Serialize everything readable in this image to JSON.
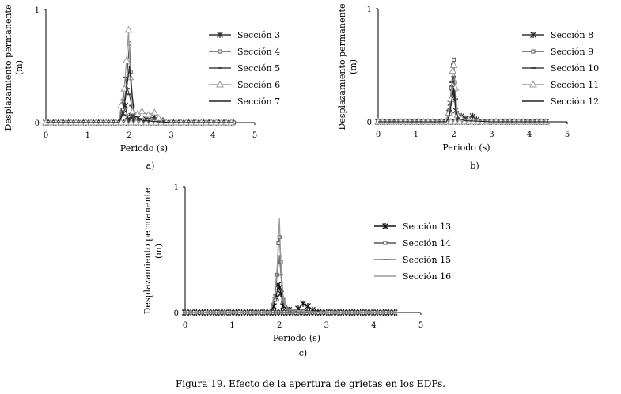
{
  "caption": "Figura 19. Efecto de la apertura de grietas en los EDPs.",
  "chart_data": [
    {
      "type": "line",
      "panel_label": "a)",
      "xlabel": "Periodo (s)",
      "ylabel_line1": "Desplazamiento permanente",
      "ylabel_line2": "(m)",
      "xlim": [
        0,
        5
      ],
      "ylim": [
        0,
        1
      ],
      "xticks": [
        "0",
        "1",
        "2",
        "3",
        "4",
        "5"
      ],
      "yticks": [
        "0",
        "1"
      ],
      "legend_position": "right",
      "series": [
        {
          "name": "Sección 3",
          "marker": "star",
          "color": "#333333",
          "x": [
            0,
            1.75,
            1.85,
            1.9,
            1.95,
            2.0,
            2.05,
            2.1,
            2.2,
            2.4,
            2.6,
            2.75,
            3.0,
            4.5
          ],
          "y": [
            0,
            0,
            0.08,
            0.15,
            0.05,
            0.02,
            0.06,
            0.03,
            0.04,
            0.03,
            0.05,
            0.02,
            0,
            0
          ]
        },
        {
          "name": "Sección 4",
          "marker": "square",
          "color": "#555555",
          "x": [
            0,
            1.75,
            1.85,
            1.92,
            1.97,
            2.0,
            2.03,
            2.08,
            2.15,
            2.3,
            2.6,
            3.0,
            4.5
          ],
          "y": [
            0,
            0,
            0.12,
            0.3,
            0.55,
            0.7,
            0.45,
            0.15,
            0.04,
            0.02,
            0.01,
            0,
            0
          ]
        },
        {
          "name": "Sección 5",
          "marker": "dash",
          "color": "#444444",
          "x": [
            0,
            1.75,
            1.85,
            1.9,
            1.95,
            2.0,
            2.05,
            2.1,
            2.2,
            2.5,
            3.0,
            4.5
          ],
          "y": [
            0,
            0,
            0.2,
            0.4,
            0.3,
            0.25,
            0.15,
            0.05,
            0.02,
            0.01,
            0,
            0
          ]
        },
        {
          "name": "Sección 6",
          "marker": "triangle",
          "color": "#999999",
          "x": [
            0,
            1.75,
            1.8,
            1.88,
            1.93,
            1.98,
            2.02,
            2.08,
            2.2,
            2.3,
            2.45,
            2.6,
            2.7,
            3.0,
            4.5
          ],
          "y": [
            0,
            0,
            0.15,
            0.3,
            0.55,
            0.82,
            0.4,
            0.1,
            0.08,
            0.1,
            0.07,
            0.09,
            0.04,
            0,
            0
          ]
        },
        {
          "name": "Sección 7",
          "marker": "none",
          "color": "#222222",
          "x": [
            0,
            1.75,
            1.82,
            1.9,
            1.95,
            2.0,
            2.05,
            2.12,
            2.3,
            2.6,
            3.0,
            4.5
          ],
          "y": [
            0,
            0,
            0.06,
            0.2,
            0.35,
            0.5,
            0.3,
            0.06,
            0.02,
            0.01,
            0,
            0
          ]
        }
      ]
    },
    {
      "type": "line",
      "panel_label": "b)",
      "xlabel": "Periodo (s)",
      "ylabel_line1": "Desplazamiento permanente",
      "ylabel_line2": "(m)",
      "xlim": [
        0,
        5
      ],
      "ylim": [
        0,
        1
      ],
      "xticks": [
        "0",
        "1",
        "2",
        "3",
        "4",
        "5"
      ],
      "yticks": [
        "0",
        "1"
      ],
      "legend_position": "right",
      "series": [
        {
          "name": "Sección 8",
          "marker": "star",
          "color": "#333333",
          "x": [
            0,
            1.8,
            1.88,
            1.93,
            1.97,
            2.0,
            2.05,
            2.1,
            2.2,
            2.3,
            2.5,
            2.6,
            3.0,
            4.5
          ],
          "y": [
            0,
            0,
            0.08,
            0.2,
            0.3,
            0.25,
            0.1,
            0.03,
            0.05,
            0.03,
            0.05,
            0.02,
            0,
            0
          ]
        },
        {
          "name": "Sección 9",
          "marker": "square",
          "color": "#555555",
          "x": [
            0,
            1.8,
            1.88,
            1.94,
            1.98,
            2.0,
            2.03,
            2.08,
            2.2,
            2.5,
            3.0,
            4.5
          ],
          "y": [
            0,
            0,
            0.1,
            0.3,
            0.5,
            0.55,
            0.35,
            0.08,
            0.02,
            0.01,
            0,
            0
          ]
        },
        {
          "name": "Sección 10",
          "marker": "dash",
          "color": "#444444",
          "x": [
            0,
            1.8,
            1.9,
            1.95,
            2.0,
            2.05,
            2.1,
            2.3,
            3.0,
            4.5
          ],
          "y": [
            0,
            0,
            0.15,
            0.35,
            0.4,
            0.2,
            0.05,
            0.01,
            0,
            0
          ]
        },
        {
          "name": "Sección 11",
          "marker": "triangle",
          "color": "#999999",
          "x": [
            0,
            1.8,
            1.87,
            1.92,
            1.97,
            2.0,
            2.04,
            2.1,
            2.2,
            2.4,
            3.0,
            4.5
          ],
          "y": [
            0,
            0,
            0.08,
            0.2,
            0.45,
            0.5,
            0.3,
            0.06,
            0.03,
            0.02,
            0,
            0
          ]
        },
        {
          "name": "Sección 12",
          "marker": "none",
          "color": "#222222",
          "x": [
            0,
            1.8,
            1.88,
            1.95,
            2.0,
            2.05,
            2.12,
            2.3,
            3.0,
            4.5
          ],
          "y": [
            0,
            0,
            0.05,
            0.2,
            0.3,
            0.12,
            0.03,
            0.01,
            0,
            0
          ]
        }
      ]
    },
    {
      "type": "line",
      "panel_label": "c)",
      "xlabel": "Periodo (s)",
      "ylabel_line1": "Desplazamiento permanente",
      "ylabel_line2": "(m)",
      "xlim": [
        0,
        5
      ],
      "ylim": [
        0,
        1
      ],
      "xticks": [
        "0",
        "1",
        "2",
        "3",
        "4",
        "5"
      ],
      "yticks": [
        "0",
        "1"
      ],
      "legend_position": "right",
      "series": [
        {
          "name": "Sección 13",
          "marker": "star",
          "color": "#111111",
          "x": [
            0,
            1.8,
            1.88,
            1.93,
            1.97,
            2.0,
            2.03,
            2.08,
            2.2,
            2.4,
            2.5,
            2.6,
            2.7,
            3.0,
            4.5
          ],
          "y": [
            0,
            0,
            0.05,
            0.12,
            0.22,
            0.2,
            0.15,
            0.05,
            0.02,
            0.03,
            0.07,
            0.05,
            0.02,
            0,
            0
          ]
        },
        {
          "name": "Sección 14",
          "marker": "square",
          "color": "#555555",
          "x": [
            0,
            1.8,
            1.9,
            1.95,
            1.98,
            2.0,
            2.03,
            2.08,
            2.2,
            2.5,
            3.0,
            4.5
          ],
          "y": [
            0,
            0,
            0.1,
            0.3,
            0.55,
            0.6,
            0.4,
            0.1,
            0.02,
            0.01,
            0,
            0
          ]
        },
        {
          "name": "Sección 15",
          "marker": "dash",
          "color": "#777777",
          "x": [
            0,
            1.8,
            1.9,
            1.95,
            2.0,
            2.03,
            2.08,
            2.2,
            3.0,
            4.5
          ],
          "y": [
            0,
            0,
            0.12,
            0.3,
            0.45,
            0.3,
            0.08,
            0.02,
            0,
            0
          ]
        },
        {
          "name": "Sección 16",
          "marker": "none",
          "color": "#999999",
          "x": [
            0,
            1.8,
            1.9,
            1.95,
            1.98,
            2.0,
            2.02,
            2.06,
            2.15,
            2.5,
            3.0,
            4.5
          ],
          "y": [
            0,
            0,
            0.15,
            0.35,
            0.6,
            0.75,
            0.5,
            0.15,
            0.03,
            0.01,
            0,
            0
          ]
        }
      ]
    }
  ]
}
